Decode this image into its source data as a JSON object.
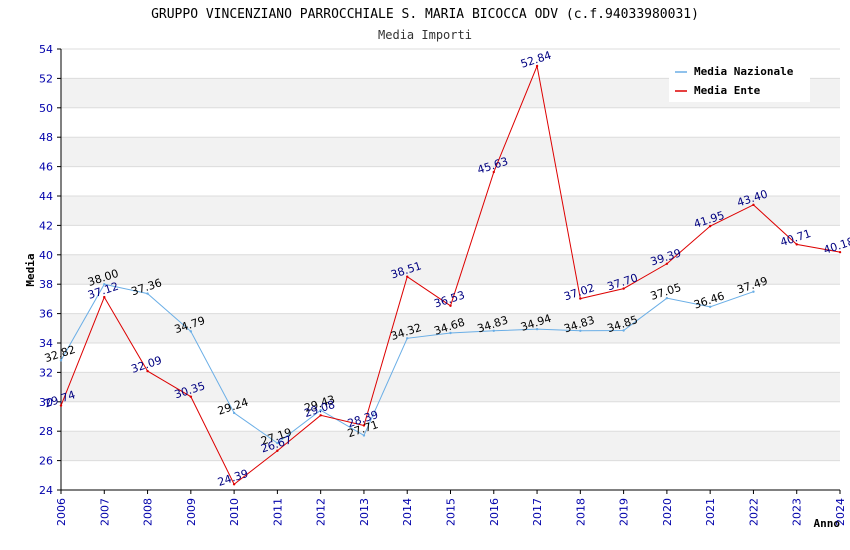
{
  "chart_data": {
    "type": "line",
    "title": "GRUPPO VINCENZIANO PARROCCHIALE S. MARIA BICOCCA ODV (c.f.94033980031)",
    "subtitle": "Media Importi",
    "xlabel": "Anno",
    "ylabel": "Media",
    "ylim": [
      24,
      54
    ],
    "y_ticks": [
      "24",
      "26",
      "28",
      "30",
      "32",
      "34",
      "36",
      "38",
      "40",
      "42",
      "44",
      "46",
      "48",
      "50",
      "52",
      "54"
    ],
    "x": [
      "2006",
      "2007",
      "2008",
      "2009",
      "2010",
      "2011",
      "2012",
      "2013",
      "2014",
      "2015",
      "2016",
      "2017",
      "2018",
      "2019",
      "2020",
      "2021",
      "2022",
      "2023",
      "2024"
    ],
    "legend_position": "top-right",
    "series": [
      {
        "name": "Media Nazionale",
        "color": "#6aaee6",
        "label_color": "#000000",
        "values": [
          32.82,
          38.0,
          37.36,
          34.79,
          29.24,
          27.19,
          29.43,
          27.71,
          34.32,
          34.68,
          34.83,
          34.94,
          34.83,
          34.85,
          37.05,
          36.46,
          37.49,
          null,
          null
        ],
        "labels": [
          "32.82",
          "38.00",
          "37.36",
          "34.79",
          "29.24",
          "27.19",
          "29.43",
          "27.71",
          "34.32",
          "34.68",
          "34.83",
          "34.94",
          "34.83",
          "34.85",
          "37.05",
          "36.46",
          "37.49",
          "",
          ""
        ]
      },
      {
        "name": "Media Ente",
        "color": "#dd0000",
        "label_color": "#000080",
        "values": [
          29.74,
          37.12,
          32.09,
          30.35,
          24.39,
          26.67,
          29.08,
          28.39,
          38.51,
          36.53,
          45.63,
          52.84,
          37.02,
          37.7,
          39.39,
          41.95,
          43.4,
          40.71,
          40.18
        ],
        "labels": [
          "29.74",
          "37.12",
          "32.09",
          "30.35",
          "24.39",
          "26.67",
          "29.08",
          "28.39",
          "38.51",
          "36.53",
          "45.63",
          "52.84",
          "37.02",
          "37.70",
          "39.39",
          "41.95",
          "43.40",
          "40.71",
          "40.18"
        ]
      }
    ]
  }
}
